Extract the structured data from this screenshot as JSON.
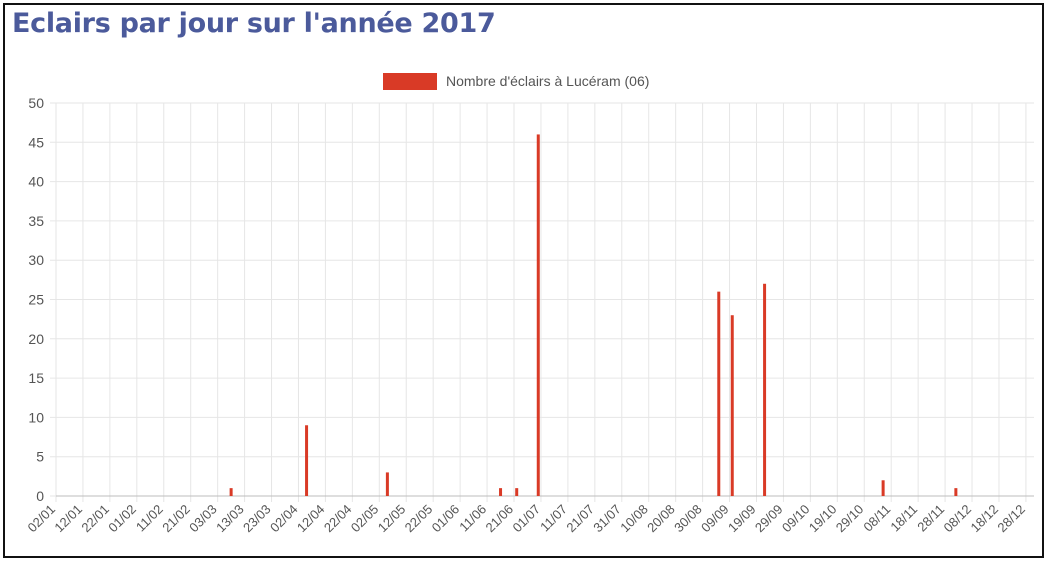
{
  "title": "Eclairs par jour sur l'année 2017",
  "colors": {
    "title": "#4b5a9b",
    "bar": "#d93a26",
    "grid": "#e6e6e6",
    "axis_text": "#555555"
  },
  "chart_data": {
    "type": "bar",
    "legend": {
      "label": "Nombre d'éclairs à Lucéram (06)",
      "position": "top"
    },
    "series": [
      {
        "name": "Nombre d'éclairs à Lucéram (06)",
        "points": [
          {
            "date": "08/03",
            "value": 1
          },
          {
            "date": "05/04",
            "value": 9
          },
          {
            "date": "05/05",
            "value": 3
          },
          {
            "date": "16/06",
            "value": 1
          },
          {
            "date": "22/06",
            "value": 1
          },
          {
            "date": "30/06",
            "value": 46
          },
          {
            "date": "05/09",
            "value": 26
          },
          {
            "date": "10/09",
            "value": 23
          },
          {
            "date": "22/09",
            "value": 27
          },
          {
            "date": "05/11",
            "value": 2
          },
          {
            "date": "02/12",
            "value": 1
          }
        ]
      }
    ],
    "x_tick_labels": [
      "02/01",
      "12/01",
      "22/01",
      "01/02",
      "11/02",
      "21/02",
      "03/03",
      "13/03",
      "23/03",
      "02/04",
      "12/04",
      "22/04",
      "02/05",
      "12/05",
      "22/05",
      "01/06",
      "11/06",
      "21/06",
      "01/07",
      "11/07",
      "21/07",
      "31/07",
      "10/08",
      "20/08",
      "30/08",
      "09/09",
      "19/09",
      "29/09",
      "09/10",
      "19/10",
      "29/10",
      "08/11",
      "18/11",
      "28/11",
      "08/12",
      "18/12",
      "28/12"
    ],
    "x_range": [
      "02/01",
      "31/12"
    ],
    "ylim": [
      0,
      50
    ],
    "y_ticks": [
      0,
      5,
      10,
      15,
      20,
      25,
      30,
      35,
      40,
      45,
      50
    ],
    "grid": true
  }
}
